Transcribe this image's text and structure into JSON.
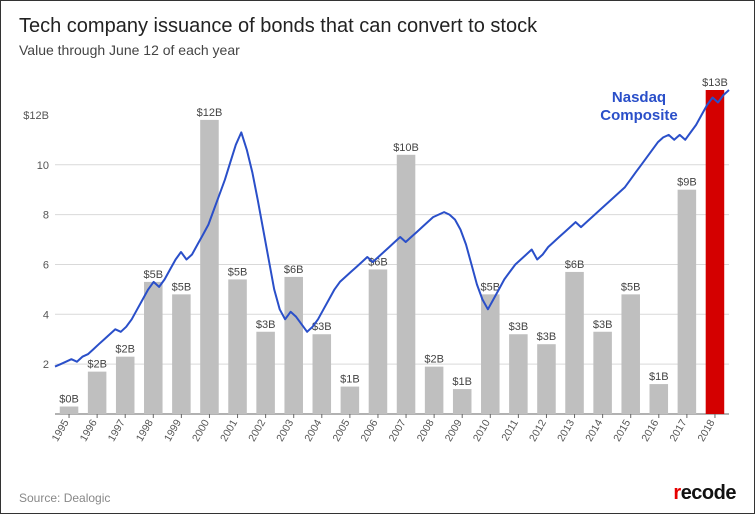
{
  "title": "Tech company issuance of bonds that can convert to stock",
  "subtitle": "Value through June 12 of each year",
  "source_label": "Source: Dealogic",
  "brand": "recode",
  "line_label": "Nasdaq\nComposite",
  "chart": {
    "type": "bar+line",
    "background_color": "#ffffff",
    "grid_color": "#d9d9d9",
    "axis_color": "#666666",
    "bar_color": "#bfbfbf",
    "bar_highlight_color": "#d40000",
    "line_color": "#2a4fc9",
    "title_fontsize": 20,
    "subtitle_fontsize": 14,
    "axis_fontsize": 11,
    "bar_label_fontsize": 11,
    "line_label_fontsize": 15,
    "line_label_color": "#2a4fc9",
    "ylim": [
      0,
      13
    ],
    "yticks": [
      2,
      4,
      6,
      8,
      10
    ],
    "ytick_labels": [
      "2",
      "4",
      "6",
      "8",
      "10"
    ],
    "extra_ylabel": {
      "value": 12,
      "label": "$12B"
    },
    "years": [
      1995,
      1996,
      1997,
      1998,
      1999,
      2000,
      2001,
      2002,
      2003,
      2004,
      2005,
      2006,
      2007,
      2008,
      2009,
      2010,
      2011,
      2012,
      2013,
      2014,
      2015,
      2016,
      2017,
      2018
    ],
    "bars": [
      {
        "year": 1995,
        "value": 0.3,
        "label": "$0B",
        "highlight": false
      },
      {
        "year": 1996,
        "value": 1.7,
        "label": "$2B",
        "highlight": false
      },
      {
        "year": 1997,
        "value": 2.3,
        "label": "$2B",
        "highlight": false
      },
      {
        "year": 1998,
        "value": 5.3,
        "label": "$5B",
        "highlight": false
      },
      {
        "year": 1999,
        "value": 4.8,
        "label": "$5B",
        "highlight": false
      },
      {
        "year": 2000,
        "value": 11.8,
        "label": "$12B",
        "highlight": false
      },
      {
        "year": 2001,
        "value": 5.4,
        "label": "$5B",
        "highlight": false
      },
      {
        "year": 2002,
        "value": 3.3,
        "label": "$3B",
        "highlight": false
      },
      {
        "year": 2003,
        "value": 5.5,
        "label": "$6B",
        "highlight": false
      },
      {
        "year": 2004,
        "value": 3.2,
        "label": "$3B",
        "highlight": false
      },
      {
        "year": 2005,
        "value": 1.1,
        "label": "$1B",
        "highlight": false
      },
      {
        "year": 2006,
        "value": 5.8,
        "label": "$6B",
        "highlight": false
      },
      {
        "year": 2007,
        "value": 10.4,
        "label": "$10B",
        "highlight": false
      },
      {
        "year": 2008,
        "value": 1.9,
        "label": "$2B",
        "highlight": false
      },
      {
        "year": 2009,
        "value": 1.0,
        "label": "$1B",
        "highlight": false
      },
      {
        "year": 2010,
        "value": 4.8,
        "label": "$5B",
        "highlight": false
      },
      {
        "year": 2011,
        "value": 3.2,
        "label": "$3B",
        "highlight": false
      },
      {
        "year": 2012,
        "value": 2.8,
        "label": "$3B",
        "highlight": false
      },
      {
        "year": 2013,
        "value": 5.7,
        "label": "$6B",
        "highlight": false
      },
      {
        "year": 2014,
        "value": 3.3,
        "label": "$3B",
        "highlight": false
      },
      {
        "year": 2015,
        "value": 4.8,
        "label": "$5B",
        "highlight": false
      },
      {
        "year": 2016,
        "value": 1.2,
        "label": "$1B",
        "highlight": false
      },
      {
        "year": 2017,
        "value": 9.0,
        "label": "$9B",
        "highlight": false
      },
      {
        "year": 2018,
        "value": 13.0,
        "label": "$13B",
        "highlight": true
      }
    ],
    "nasdaq_line": [
      1.9,
      2.0,
      2.1,
      2.2,
      2.1,
      2.3,
      2.4,
      2.6,
      2.8,
      3.0,
      3.2,
      3.4,
      3.3,
      3.5,
      3.8,
      4.2,
      4.6,
      5.0,
      5.3,
      5.1,
      5.4,
      5.8,
      6.2,
      6.5,
      6.2,
      6.4,
      6.8,
      7.2,
      7.6,
      8.2,
      8.8,
      9.4,
      10.1,
      10.8,
      11.3,
      10.6,
      9.7,
      8.6,
      7.4,
      6.2,
      5.0,
      4.2,
      3.8,
      4.1,
      3.9,
      3.6,
      3.3,
      3.5,
      3.8,
      4.2,
      4.6,
      5.0,
      5.3,
      5.5,
      5.7,
      5.9,
      6.1,
      6.3,
      6.1,
      6.3,
      6.5,
      6.7,
      6.9,
      7.1,
      6.9,
      7.1,
      7.3,
      7.5,
      7.7,
      7.9,
      8.0,
      8.1,
      8.0,
      7.8,
      7.4,
      6.8,
      6.0,
      5.2,
      4.6,
      4.2,
      4.6,
      5.0,
      5.4,
      5.7,
      6.0,
      6.2,
      6.4,
      6.6,
      6.2,
      6.4,
      6.7,
      6.9,
      7.1,
      7.3,
      7.5,
      7.7,
      7.5,
      7.7,
      7.9,
      8.1,
      8.3,
      8.5,
      8.7,
      8.9,
      9.1,
      9.4,
      9.7,
      10.0,
      10.3,
      10.6,
      10.9,
      11.1,
      11.2,
      11.0,
      11.2,
      11.0,
      11.3,
      11.6,
      12.0,
      12.4,
      12.7,
      12.5,
      12.8,
      13.0
    ]
  }
}
